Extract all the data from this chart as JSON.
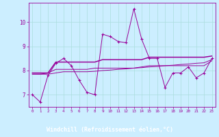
{
  "x": [
    0,
    1,
    2,
    3,
    4,
    5,
    6,
    7,
    8,
    9,
    10,
    11,
    12,
    13,
    14,
    15,
    16,
    17,
    18,
    19,
    20,
    21,
    22,
    23
  ],
  "y_main": [
    7.0,
    6.7,
    7.8,
    8.3,
    8.5,
    8.2,
    7.6,
    7.1,
    7.0,
    9.5,
    9.4,
    9.2,
    9.15,
    10.55,
    9.3,
    8.5,
    8.5,
    7.3,
    7.9,
    7.9,
    8.15,
    7.7,
    7.9,
    8.5
  ],
  "y_upper": [
    7.9,
    7.9,
    7.9,
    8.35,
    8.35,
    8.35,
    8.35,
    8.35,
    8.35,
    8.45,
    8.45,
    8.45,
    8.45,
    8.45,
    8.45,
    8.55,
    8.55,
    8.55,
    8.55,
    8.55,
    8.55,
    8.55,
    8.55,
    8.6
  ],
  "y_mid": [
    7.85,
    7.85,
    7.9,
    8.05,
    8.05,
    8.05,
    8.05,
    8.05,
    8.1,
    8.1,
    8.1,
    8.1,
    8.1,
    8.1,
    8.15,
    8.2,
    8.2,
    8.2,
    8.2,
    8.2,
    8.2,
    8.2,
    8.2,
    8.4
  ],
  "y_lower": [
    7.85,
    7.85,
    7.85,
    7.9,
    7.95,
    7.95,
    7.95,
    7.95,
    7.97,
    8.0,
    8.02,
    8.05,
    8.07,
    8.1,
    8.12,
    8.15,
    8.17,
    8.2,
    8.22,
    8.25,
    8.27,
    8.3,
    8.32,
    8.45
  ],
  "line_color": "#990099",
  "bg_color": "#cceeff",
  "grid_color": "#aadddd",
  "label_bg": "#8800aa",
  "xlabel": "Windchill (Refroidissement éolien,°C)",
  "ylim": [
    6.5,
    10.8
  ],
  "xlim": [
    -0.5,
    23.5
  ]
}
